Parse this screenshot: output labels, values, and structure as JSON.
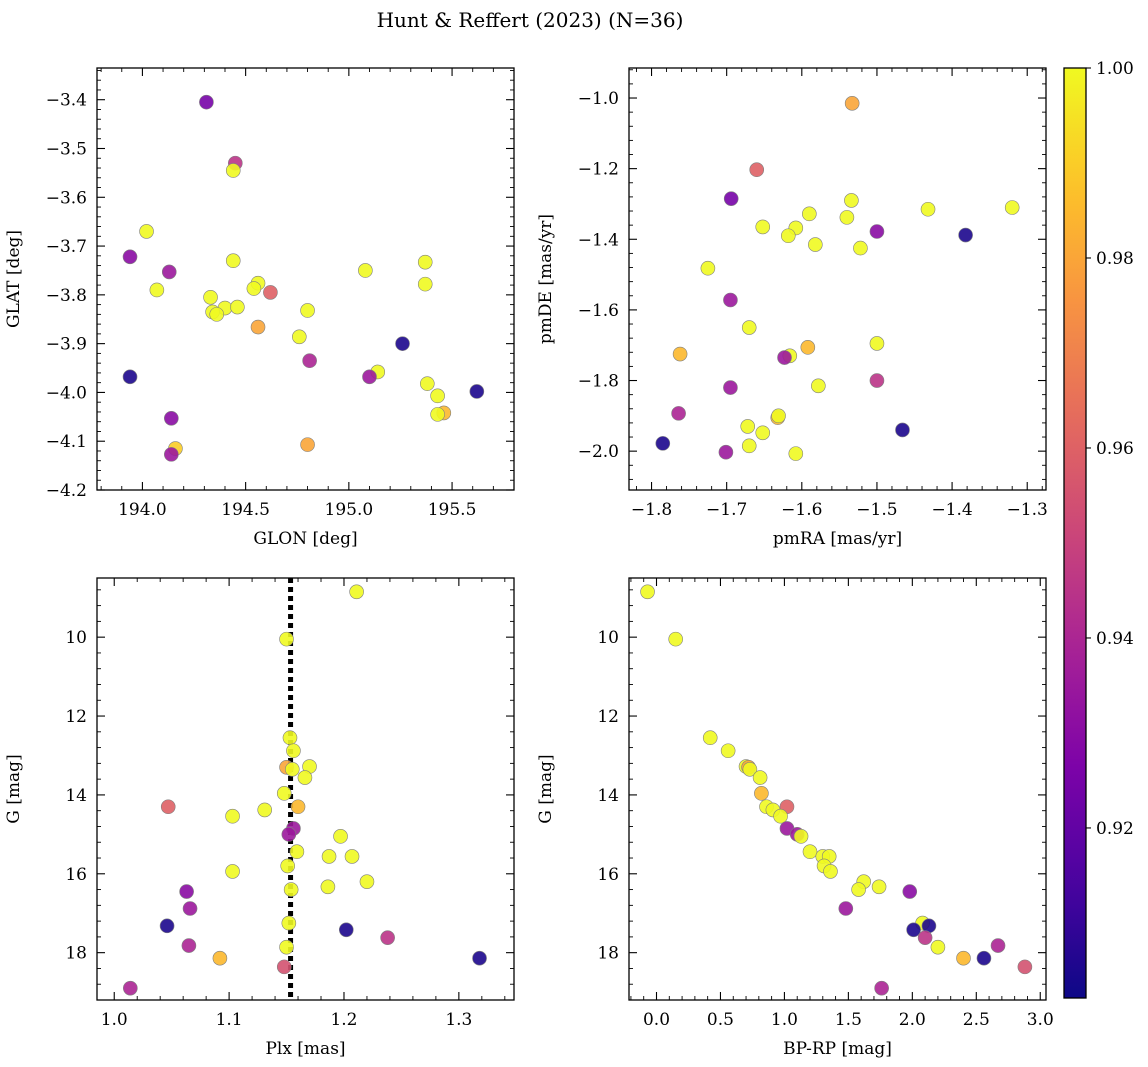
{
  "title": "Hunt & Reffert (2023) (N=36)",
  "colors": {
    "marker_edge": "#808080",
    "vline": "#000000"
  },
  "colorbar": {
    "colormap": "plasma",
    "vmin": 0.9021,
    "vmax": 1.0,
    "ticks": [
      0.92,
      0.94,
      0.96,
      0.98,
      1.0
    ],
    "tick_labels": [
      "0.92",
      "0.94",
      "0.96",
      "0.98",
      "1.00"
    ]
  },
  "chart_data": [
    {
      "type": "scatter",
      "name": "sky",
      "xlabel": "GLON [deg]",
      "ylabel": "GLAT [deg]",
      "xlim": [
        193.78,
        195.8
      ],
      "ylim": [
        -4.2,
        -3.335
      ],
      "yinvert": false,
      "xticks": [
        194.0,
        194.5,
        195.0,
        195.5
      ],
      "xtick_labels": [
        "194.0",
        "194.5",
        "195.0",
        "195.5"
      ],
      "yticks": [
        -4.2,
        -4.1,
        -4.0,
        -3.9,
        -3.8,
        -3.7,
        -3.6,
        -3.5,
        -3.4
      ],
      "ytick_labels": [
        "−4.2",
        "−4.1",
        "−4.0",
        "−3.9",
        "−3.8",
        "−3.7",
        "−3.6",
        "−3.5",
        "−3.4"
      ],
      "points": [
        {
          "x": 194.31,
          "y": -3.405,
          "c": 0.925
        },
        {
          "x": 194.45,
          "y": -3.53,
          "c": 0.945
        },
        {
          "x": 194.44,
          "y": -3.545,
          "c": 1.0
        },
        {
          "x": 194.02,
          "y": -3.67,
          "c": 1.0
        },
        {
          "x": 193.94,
          "y": -3.722,
          "c": 0.93
        },
        {
          "x": 194.44,
          "y": -3.73,
          "c": 1.0
        },
        {
          "x": 195.08,
          "y": -3.75,
          "c": 1.0
        },
        {
          "x": 195.37,
          "y": -3.733,
          "c": 1.0
        },
        {
          "x": 194.13,
          "y": -3.753,
          "c": 0.935
        },
        {
          "x": 195.37,
          "y": -3.778,
          "c": 1.0
        },
        {
          "x": 194.56,
          "y": -3.776,
          "c": 1.0
        },
        {
          "x": 194.54,
          "y": -3.787,
          "c": 1.0
        },
        {
          "x": 194.07,
          "y": -3.79,
          "c": 1.0
        },
        {
          "x": 194.62,
          "y": -3.795,
          "c": 0.96
        },
        {
          "x": 194.33,
          "y": -3.805,
          "c": 1.0
        },
        {
          "x": 194.4,
          "y": -3.827,
          "c": 1.0
        },
        {
          "x": 194.46,
          "y": -3.825,
          "c": 1.0
        },
        {
          "x": 194.8,
          "y": -3.832,
          "c": 1.0
        },
        {
          "x": 194.34,
          "y": -3.835,
          "c": 1.0
        },
        {
          "x": 194.36,
          "y": -3.84,
          "c": 1.0
        },
        {
          "x": 194.56,
          "y": -3.866,
          "c": 0.98
        },
        {
          "x": 194.76,
          "y": -3.886,
          "c": 1.0
        },
        {
          "x": 195.26,
          "y": -3.9,
          "c": 0.905
        },
        {
          "x": 194.81,
          "y": -3.935,
          "c": 0.94
        },
        {
          "x": 195.14,
          "y": -3.958,
          "c": 1.0
        },
        {
          "x": 195.1,
          "y": -3.968,
          "c": 0.935
        },
        {
          "x": 193.94,
          "y": -3.968,
          "c": 0.905
        },
        {
          "x": 195.38,
          "y": -3.982,
          "c": 1.0
        },
        {
          "x": 195.62,
          "y": -3.998,
          "c": 0.905
        },
        {
          "x": 195.43,
          "y": -4.007,
          "c": 1.0
        },
        {
          "x": 195.46,
          "y": -4.042,
          "c": 0.985
        },
        {
          "x": 195.43,
          "y": -4.045,
          "c": 1.0
        },
        {
          "x": 194.14,
          "y": -4.053,
          "c": 0.93
        },
        {
          "x": 194.8,
          "y": -4.107,
          "c": 0.98
        },
        {
          "x": 194.16,
          "y": -4.115,
          "c": 0.99
        },
        {
          "x": 194.14,
          "y": -4.127,
          "c": 0.935
        }
      ]
    },
    {
      "type": "scatter",
      "name": "proper-motion",
      "xlabel": "pmRA [mas/yr]",
      "ylabel": "pmDE [mas/yr]",
      "xlim": [
        -1.83,
        -1.275
      ],
      "ylim": [
        -2.11,
        -0.915
      ],
      "yinvert": false,
      "xticks": [
        -1.8,
        -1.7,
        -1.6,
        -1.5,
        -1.4,
        -1.3
      ],
      "xtick_labels": [
        "−1.8",
        "−1.7",
        "−1.6",
        "−1.5",
        "−1.4",
        "−1.3"
      ],
      "yticks": [
        -2.0,
        -1.8,
        -1.6,
        -1.4,
        -1.2,
        -1.0
      ],
      "ytick_labels": [
        "−2.0",
        "−1.8",
        "−1.6",
        "−1.4",
        "−1.2",
        "−1.0"
      ],
      "points": [
        {
          "x": -1.533,
          "y": -1.015,
          "c": 0.98
        },
        {
          "x": -1.66,
          "y": -1.203,
          "c": 0.96
        },
        {
          "x": -1.694,
          "y": -1.285,
          "c": 0.925
        },
        {
          "x": -1.534,
          "y": -1.29,
          "c": 1.0
        },
        {
          "x": -1.32,
          "y": -1.31,
          "c": 1.0
        },
        {
          "x": -1.432,
          "y": -1.315,
          "c": 1.0
        },
        {
          "x": -1.59,
          "y": -1.328,
          "c": 1.0
        },
        {
          "x": -1.54,
          "y": -1.338,
          "c": 1.0
        },
        {
          "x": -1.652,
          "y": -1.365,
          "c": 1.0
        },
        {
          "x": -1.608,
          "y": -1.368,
          "c": 1.0
        },
        {
          "x": -1.5,
          "y": -1.378,
          "c": 0.93
        },
        {
          "x": -1.382,
          "y": -1.388,
          "c": 0.905
        },
        {
          "x": -1.618,
          "y": -1.39,
          "c": 1.0
        },
        {
          "x": -1.582,
          "y": -1.415,
          "c": 1.0
        },
        {
          "x": -1.522,
          "y": -1.425,
          "c": 1.0
        },
        {
          "x": -1.725,
          "y": -1.482,
          "c": 1.0
        },
        {
          "x": -1.695,
          "y": -1.572,
          "c": 0.935
        },
        {
          "x": -1.67,
          "y": -1.65,
          "c": 1.0
        },
        {
          "x": -1.5,
          "y": -1.695,
          "c": 1.0
        },
        {
          "x": -1.592,
          "y": -1.706,
          "c": 0.985
        },
        {
          "x": -1.762,
          "y": -1.725,
          "c": 0.985
        },
        {
          "x": -1.616,
          "y": -1.73,
          "c": 1.0
        },
        {
          "x": -1.623,
          "y": -1.735,
          "c": 0.935
        },
        {
          "x": -1.578,
          "y": -1.815,
          "c": 1.0
        },
        {
          "x": -1.695,
          "y": -1.82,
          "c": 0.935
        },
        {
          "x": -1.5,
          "y": -1.8,
          "c": 0.945
        },
        {
          "x": -1.764,
          "y": -1.893,
          "c": 0.94
        },
        {
          "x": -1.632,
          "y": -1.905,
          "c": 0.985
        },
        {
          "x": -1.631,
          "y": -1.9,
          "c": 1.0
        },
        {
          "x": -1.672,
          "y": -1.93,
          "c": 1.0
        },
        {
          "x": -1.466,
          "y": -1.94,
          "c": 0.905
        },
        {
          "x": -1.652,
          "y": -1.948,
          "c": 1.0
        },
        {
          "x": -1.785,
          "y": -1.978,
          "c": 0.905
        },
        {
          "x": -1.67,
          "y": -1.985,
          "c": 1.0
        },
        {
          "x": -1.701,
          "y": -2.003,
          "c": 0.935
        },
        {
          "x": -1.608,
          "y": -2.007,
          "c": 1.0
        }
      ]
    },
    {
      "type": "scatter",
      "name": "parallax-magnitude",
      "xlabel": "Plx [mas]",
      "ylabel": "G [mag]",
      "xlim": [
        0.985,
        1.348
      ],
      "ylim": [
        19.2,
        8.5
      ],
      "yinvert": true,
      "vline_x": 1.1535,
      "xticks": [
        1.0,
        1.1,
        1.2,
        1.3
      ],
      "xtick_labels": [
        "1.0",
        "1.1",
        "1.2",
        "1.3"
      ],
      "yticks": [
        10,
        12,
        14,
        16,
        18
      ],
      "ytick_labels": [
        "10",
        "12",
        "14",
        "16",
        "18"
      ],
      "points": [
        {
          "x": 1.211,
          "y": 8.85,
          "c": 1.0
        },
        {
          "x": 1.15,
          "y": 10.05,
          "c": 1.0
        },
        {
          "x": 1.153,
          "y": 12.55,
          "c": 1.0
        },
        {
          "x": 1.156,
          "y": 12.88,
          "c": 1.0
        },
        {
          "x": 1.17,
          "y": 13.28,
          "c": 1.0
        },
        {
          "x": 1.15,
          "y": 13.3,
          "c": 0.98
        },
        {
          "x": 1.155,
          "y": 13.35,
          "c": 1.0
        },
        {
          "x": 1.166,
          "y": 13.56,
          "c": 1.0
        },
        {
          "x": 1.148,
          "y": 13.96,
          "c": 1.0
        },
        {
          "x": 1.16,
          "y": 14.3,
          "c": 0.985
        },
        {
          "x": 1.047,
          "y": 14.3,
          "c": 0.96
        },
        {
          "x": 1.131,
          "y": 14.38,
          "c": 1.0
        },
        {
          "x": 1.103,
          "y": 14.54,
          "c": 1.0
        },
        {
          "x": 1.156,
          "y": 14.85,
          "c": 0.935
        },
        {
          "x": 1.152,
          "y": 15.0,
          "c": 0.935
        },
        {
          "x": 1.197,
          "y": 15.05,
          "c": 1.0
        },
        {
          "x": 1.159,
          "y": 15.44,
          "c": 1.0
        },
        {
          "x": 1.207,
          "y": 15.56,
          "c": 1.0
        },
        {
          "x": 1.187,
          "y": 15.56,
          "c": 1.0
        },
        {
          "x": 1.151,
          "y": 15.8,
          "c": 1.0
        },
        {
          "x": 1.103,
          "y": 15.94,
          "c": 1.0
        },
        {
          "x": 1.22,
          "y": 16.2,
          "c": 1.0
        },
        {
          "x": 1.186,
          "y": 16.33,
          "c": 1.0
        },
        {
          "x": 1.154,
          "y": 16.4,
          "c": 1.0
        },
        {
          "x": 1.063,
          "y": 16.45,
          "c": 0.93
        },
        {
          "x": 1.066,
          "y": 16.88,
          "c": 0.935
        },
        {
          "x": 1.152,
          "y": 17.25,
          "c": 1.0
        },
        {
          "x": 1.046,
          "y": 17.32,
          "c": 0.905
        },
        {
          "x": 1.202,
          "y": 17.42,
          "c": 0.905
        },
        {
          "x": 1.238,
          "y": 17.62,
          "c": 0.945
        },
        {
          "x": 1.065,
          "y": 17.82,
          "c": 0.94
        },
        {
          "x": 1.15,
          "y": 17.86,
          "c": 1.0
        },
        {
          "x": 1.318,
          "y": 18.14,
          "c": 0.905
        },
        {
          "x": 1.092,
          "y": 18.14,
          "c": 0.985
        },
        {
          "x": 1.148,
          "y": 18.36,
          "c": 0.955
        },
        {
          "x": 1.014,
          "y": 18.9,
          "c": 0.94
        }
      ]
    },
    {
      "type": "scatter",
      "name": "color-magnitude",
      "xlabel": "BP-RP [mag]",
      "ylabel": "G [mag]",
      "xlim": [
        -0.215,
        3.045
      ],
      "ylim": [
        19.2,
        8.5
      ],
      "yinvert": true,
      "xticks": [
        0.0,
        0.5,
        1.0,
        1.5,
        2.0,
        2.5,
        3.0
      ],
      "xtick_labels": [
        "0.0",
        "0.5",
        "1.0",
        "1.5",
        "2.0",
        "2.5",
        "3.0"
      ],
      "yticks": [
        10,
        12,
        14,
        16,
        18
      ],
      "ytick_labels": [
        "10",
        "12",
        "14",
        "16",
        "18"
      ],
      "points": [
        {
          "x": -0.07,
          "y": 8.85,
          "c": 1.0
        },
        {
          "x": 0.15,
          "y": 10.05,
          "c": 1.0
        },
        {
          "x": 0.42,
          "y": 12.55,
          "c": 1.0
        },
        {
          "x": 0.56,
          "y": 12.88,
          "c": 1.0
        },
        {
          "x": 0.7,
          "y": 13.28,
          "c": 1.0
        },
        {
          "x": 0.72,
          "y": 13.3,
          "c": 0.98
        },
        {
          "x": 0.73,
          "y": 13.35,
          "c": 1.0
        },
        {
          "x": 0.81,
          "y": 13.56,
          "c": 1.0
        },
        {
          "x": 0.82,
          "y": 13.96,
          "c": 0.985
        },
        {
          "x": 0.86,
          "y": 14.3,
          "c": 1.0
        },
        {
          "x": 1.02,
          "y": 14.3,
          "c": 0.96
        },
        {
          "x": 0.91,
          "y": 14.38,
          "c": 1.0
        },
        {
          "x": 0.97,
          "y": 14.54,
          "c": 1.0
        },
        {
          "x": 1.02,
          "y": 14.85,
          "c": 0.935
        },
        {
          "x": 1.1,
          "y": 15.0,
          "c": 0.935
        },
        {
          "x": 1.13,
          "y": 15.05,
          "c": 1.0
        },
        {
          "x": 1.2,
          "y": 15.44,
          "c": 1.0
        },
        {
          "x": 1.3,
          "y": 15.56,
          "c": 1.0
        },
        {
          "x": 1.35,
          "y": 15.56,
          "c": 1.0
        },
        {
          "x": 1.31,
          "y": 15.8,
          "c": 1.0
        },
        {
          "x": 1.36,
          "y": 15.94,
          "c": 1.0
        },
        {
          "x": 1.62,
          "y": 16.2,
          "c": 1.0
        },
        {
          "x": 1.74,
          "y": 16.33,
          "c": 1.0
        },
        {
          "x": 1.58,
          "y": 16.4,
          "c": 1.0
        },
        {
          "x": 1.98,
          "y": 16.45,
          "c": 0.93
        },
        {
          "x": 1.48,
          "y": 16.88,
          "c": 0.935
        },
        {
          "x": 2.08,
          "y": 17.25,
          "c": 1.0
        },
        {
          "x": 2.13,
          "y": 17.32,
          "c": 0.905
        },
        {
          "x": 2.01,
          "y": 17.42,
          "c": 0.905
        },
        {
          "x": 2.1,
          "y": 17.62,
          "c": 0.945
        },
        {
          "x": 2.67,
          "y": 17.82,
          "c": 0.94
        },
        {
          "x": 2.2,
          "y": 17.86,
          "c": 1.0
        },
        {
          "x": 2.56,
          "y": 18.14,
          "c": 0.905
        },
        {
          "x": 2.4,
          "y": 18.14,
          "c": 0.985
        },
        {
          "x": 2.88,
          "y": 18.36,
          "c": 0.955
        },
        {
          "x": 1.76,
          "y": 18.9,
          "c": 0.94
        }
      ]
    }
  ]
}
